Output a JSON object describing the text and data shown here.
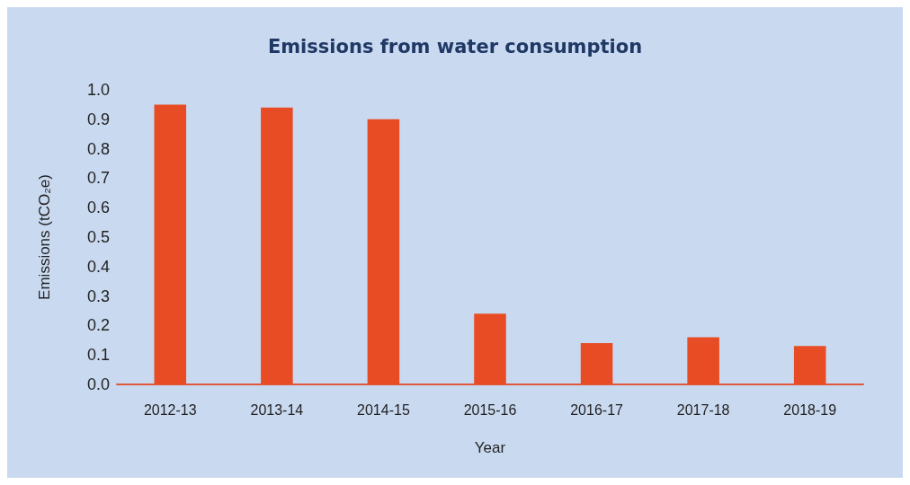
{
  "chart_data": {
    "type": "bar",
    "title": "Emissions from water consumption",
    "xlabel": "Year",
    "ylabel": "Emissions (tCO₂e)",
    "categories": [
      "2012-13",
      "2013-14",
      "2014-15",
      "2015-16",
      "2016-17",
      "2017-18",
      "2018-19"
    ],
    "values": [
      0.95,
      0.94,
      0.9,
      0.24,
      0.14,
      0.16,
      0.13
    ],
    "color": "#e84c25",
    "ylim": [
      0,
      1
    ],
    "yticks": [
      {
        "value": 0,
        "label": "0.0"
      },
      0.1,
      0.2,
      0.3,
      0.4,
      0.5,
      0.6,
      0.7,
      0.8,
      0.9,
      {
        "value": 1,
        "label": "1.0"
      }
    ],
    "grid": false
  }
}
